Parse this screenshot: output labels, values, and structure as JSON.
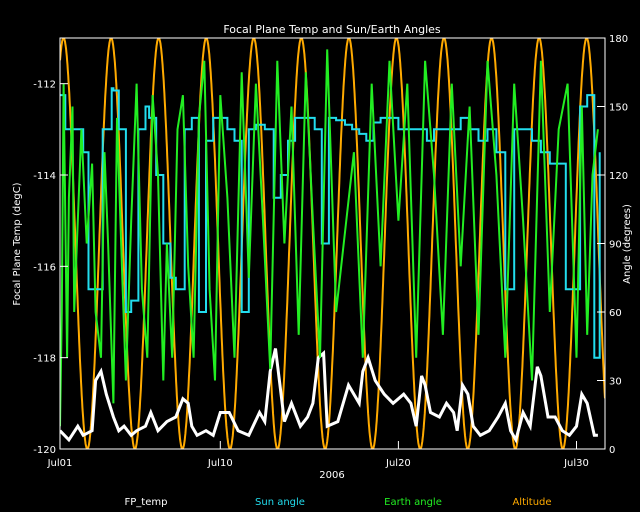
{
  "chart_data": {
    "type": "line",
    "title": "Focal Plane Temp and Sun/Earth Angles",
    "xlabel": "2006",
    "ylabel_left": "Focal Plane Temp (degC)",
    "ylabel_right": "Angle (degrees)",
    "x_tick_labels": [
      "Jul01",
      "Jul10",
      "Jul20",
      "Jul30"
    ],
    "x_tick_days": [
      1,
      10,
      20,
      30
    ],
    "xlim": [
      1,
      31.6
    ],
    "ylim_left": [
      -120,
      -111
    ],
    "ylim_right": [
      0,
      180
    ],
    "y_ticks_left": [
      -112,
      -114,
      -116,
      -118,
      -120
    ],
    "y_ticks_right": [
      180,
      150,
      120,
      90,
      60,
      30,
      0
    ],
    "legend": [
      {
        "name": "FP_temp",
        "color": "#ffffff"
      },
      {
        "name": "Sun angle",
        "color": "#22ddee"
      },
      {
        "name": "Earth angle",
        "color": "#22ee22"
      },
      {
        "name": "Altitude",
        "color": "#ffaa00"
      }
    ],
    "series": [
      {
        "name": "FP_temp",
        "axis": "left",
        "color": "#ffffff",
        "x": [
          1.0,
          1.5,
          2.0,
          2.3,
          2.8,
          3.0,
          3.3,
          3.6,
          4.0,
          4.3,
          4.6,
          5.0,
          5.3,
          5.8,
          6.1,
          6.5,
          7.0,
          7.5,
          7.9,
          8.2,
          8.4,
          8.7,
          9.2,
          9.6,
          10.0,
          10.5,
          11.0,
          11.6,
          12.2,
          12.5,
          12.8,
          13.1,
          13.6,
          14.0,
          14.5,
          14.9,
          15.2,
          15.5,
          15.8,
          16.0,
          16.6,
          17.2,
          17.8,
          18.0,
          18.3,
          18.7,
          19.2,
          19.7,
          20.3,
          20.7,
          21.0,
          21.3,
          21.5,
          21.8,
          22.3,
          22.7,
          23.1,
          23.3,
          23.6,
          23.9,
          24.2,
          24.6,
          25.1,
          25.6,
          26.0,
          26.3,
          26.6,
          27.0,
          27.4,
          27.8,
          28.0,
          28.4,
          28.8,
          29.2,
          29.6,
          30.0,
          30.3,
          30.6,
          31.0,
          31.2
        ],
        "y": [
          -119.6,
          -119.8,
          -119.5,
          -119.7,
          -119.6,
          -118.5,
          -118.3,
          -118.8,
          -119.3,
          -119.6,
          -119.5,
          -119.7,
          -119.6,
          -119.5,
          -119.2,
          -119.6,
          -119.4,
          -119.3,
          -118.9,
          -119.0,
          -119.5,
          -119.7,
          -119.6,
          -119.7,
          -119.2,
          -119.2,
          -119.6,
          -119.7,
          -119.2,
          -119.4,
          -118.3,
          -117.8,
          -119.4,
          -119.0,
          -119.5,
          -119.3,
          -119.0,
          -118.0,
          -117.9,
          -119.5,
          -119.4,
          -118.6,
          -119.0,
          -118.3,
          -118.0,
          -118.5,
          -118.8,
          -119.0,
          -118.8,
          -119.0,
          -119.5,
          -118.4,
          -118.6,
          -119.2,
          -119.3,
          -119.0,
          -119.2,
          -119.6,
          -118.6,
          -118.8,
          -119.5,
          -119.7,
          -119.6,
          -119.3,
          -119.0,
          -119.6,
          -119.8,
          -119.2,
          -119.5,
          -118.2,
          -118.4,
          -119.3,
          -119.3,
          -119.6,
          -119.7,
          -119.5,
          -118.8,
          -119.0,
          -119.7,
          -119.7
        ]
      },
      {
        "name": "Sun angle",
        "axis": "right",
        "color": "#22ddee",
        "x": [
          1.0,
          1.3,
          2.0,
          2.3,
          2.6,
          3.0,
          3.4,
          3.9,
          4.0,
          4.3,
          4.7,
          5.0,
          5.4,
          5.8,
          6.0,
          6.4,
          6.8,
          7.2,
          7.5,
          8.0,
          8.4,
          8.8,
          9.2,
          9.6,
          10.0,
          10.4,
          10.8,
          11.2,
          11.6,
          12.0,
          12.5,
          13.0,
          13.4,
          13.8,
          14.2,
          14.6,
          15.0,
          15.3,
          15.7,
          16.1,
          16.5,
          17.0,
          17.4,
          17.8,
          18.2,
          18.6,
          19.0,
          19.5,
          20.0,
          20.4,
          20.8,
          21.2,
          21.6,
          22.0,
          22.5,
          23.0,
          23.5,
          24.0,
          24.5,
          25.0,
          25.5,
          26.0,
          26.5,
          27.0,
          27.5,
          28.0,
          28.5,
          29.0,
          29.4,
          29.8,
          30.2,
          30.6,
          31.0,
          31.3
        ],
        "y": [
          155,
          140,
          140,
          130,
          70,
          70,
          140,
          158,
          157,
          140,
          60,
          65,
          140,
          150,
          145,
          120,
          90,
          75,
          70,
          140,
          145,
          60,
          135,
          145,
          145,
          140,
          135,
          60,
          140,
          142,
          140,
          110,
          120,
          135,
          145,
          145,
          145,
          140,
          90,
          145,
          144,
          142,
          140,
          138,
          135,
          143,
          145,
          145,
          140,
          140,
          140,
          140,
          135,
          140,
          140,
          140,
          145,
          140,
          135,
          140,
          130,
          70,
          140,
          140,
          135,
          130,
          125,
          125,
          70,
          70,
          150,
          155,
          40,
          130
        ]
      },
      {
        "name": "Earth angle",
        "axis": "right",
        "color": "#22ee22",
        "x": [
          1.0,
          1.1,
          1.2,
          1.4,
          1.5,
          1.7,
          1.8,
          2.0,
          2.2,
          2.5,
          2.8,
          3.0,
          3.3,
          3.5,
          3.7,
          4.0,
          4.2,
          4.5,
          4.7,
          5.0,
          5.3,
          5.6,
          5.9,
          6.2,
          6.5,
          6.8,
          7.0,
          7.3,
          7.6,
          7.9,
          8.2,
          8.5,
          8.8,
          9.1,
          9.4,
          9.7,
          10.0,
          10.4,
          10.8,
          11.2,
          11.6,
          12.0,
          12.4,
          12.8,
          13.2,
          13.6,
          14.0,
          14.4,
          14.8,
          15.2,
          15.6,
          16.0,
          16.5,
          17.0,
          17.5,
          18.0,
          18.5,
          19.0,
          19.5,
          20.0,
          20.5,
          21.0,
          21.5,
          22.0,
          22.5,
          23.0,
          23.5,
          24.0,
          24.5,
          25.0,
          25.5,
          26.0,
          26.5,
          27.0,
          27.5,
          28.0,
          28.5,
          29.0,
          29.5,
          30.0,
          30.3,
          30.6,
          30.9,
          31.2
        ],
        "y": [
          10,
          60,
          160,
          40,
          110,
          150,
          60,
          100,
          140,
          90,
          125,
          60,
          40,
          130,
          90,
          20,
          145,
          75,
          30,
          100,
          160,
          70,
          40,
          155,
          120,
          30,
          90,
          40,
          140,
          155,
          80,
          40,
          145,
          170,
          70,
          30,
          155,
          110,
          40,
          165,
          75,
          160,
          100,
          35,
          170,
          90,
          150,
          50,
          165,
          100,
          40,
          175,
          60,
          95,
          130,
          40,
          160,
          80,
          170,
          100,
          160,
          40,
          170,
          120,
          50,
          160,
          80,
          150,
          50,
          170,
          120,
          40,
          160,
          100,
          30,
          170,
          60,
          140,
          160,
          40,
          150,
          50,
          120,
          140
        ]
      },
      {
        "name": "Altitude",
        "axis": "right",
        "color": "#ffaa00",
        "period_days": 2.67,
        "peaks_x": [
          1.2,
          3.9,
          6.6,
          9.3,
          12.0,
          14.7,
          17.4,
          20.1,
          22.8,
          25.5,
          28.2,
          30.9
        ],
        "max": 180,
        "min": 0
      }
    ]
  }
}
